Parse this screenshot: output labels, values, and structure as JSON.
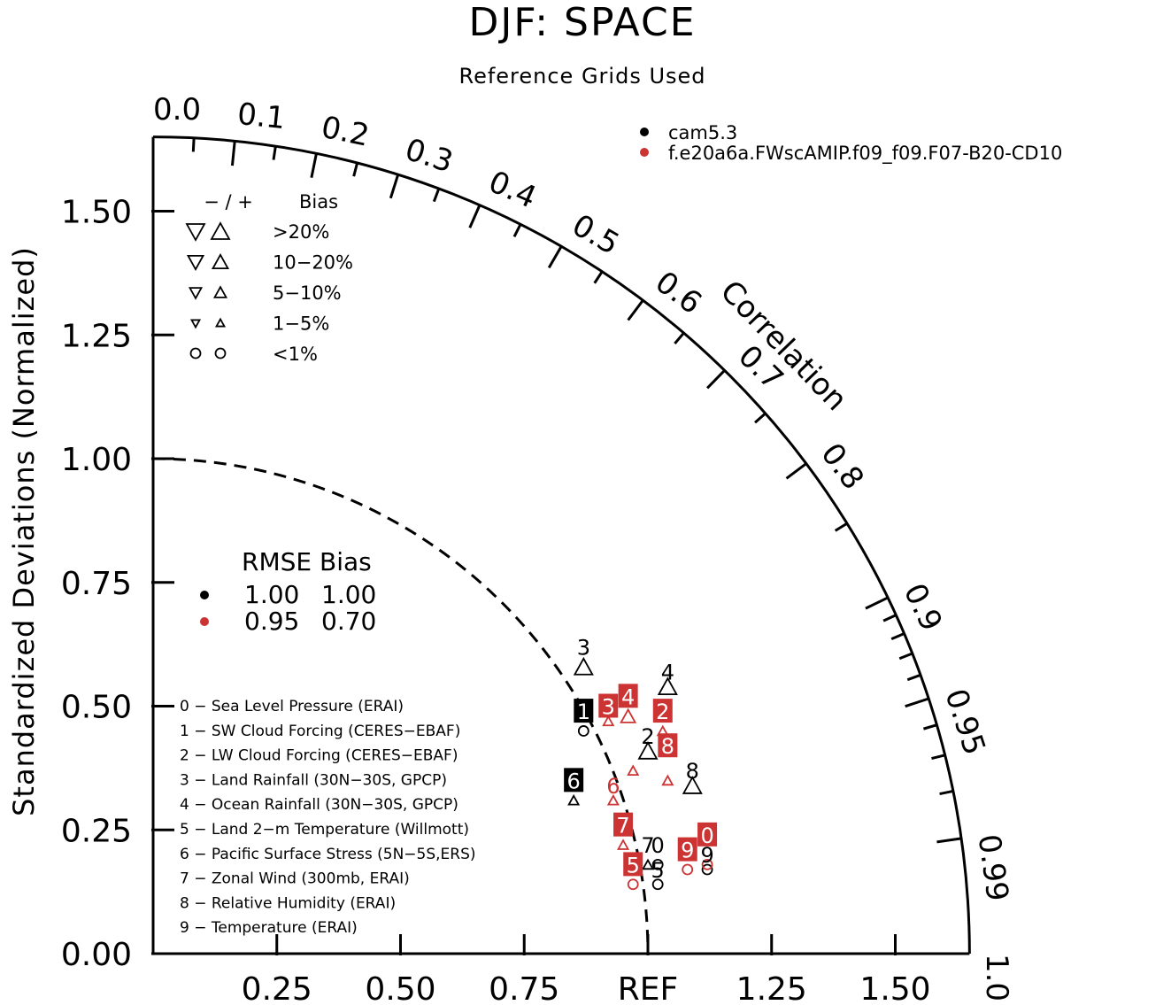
{
  "chart_data": {
    "type": "scatter",
    "subtype": "taylor-diagram",
    "title": "DJF: SPACE",
    "subtitle": "Reference Grids Used",
    "ylabel": "Standardized Deviations (Normalized)",
    "angular_label": "Correlation",
    "radial_max": 1.65,
    "y_ticks": [
      "0.00",
      "0.25",
      "0.50",
      "0.75",
      "1.00",
      "1.25",
      "1.50"
    ],
    "x_ticks": [
      "0.25",
      "0.50",
      "0.75",
      "REF",
      "1.25",
      "1.50"
    ],
    "corr_labels": [
      "0.0",
      "0.1",
      "0.2",
      "0.3",
      "0.4",
      "0.5",
      "0.6",
      "0.7",
      "0.8",
      "0.9",
      "0.95",
      "0.99",
      "1.0"
    ],
    "colors": {
      "black": "#000000",
      "red": "#cc3333"
    },
    "series": [
      {
        "name": "cam5.3",
        "color": "#000000",
        "points": [
          {
            "id": "0",
            "x": 1.02,
            "y": 0.18,
            "marker": "circle"
          },
          {
            "id": "1",
            "x": 0.87,
            "y": 0.45,
            "marker": "circle"
          },
          {
            "id": "2",
            "x": 1.0,
            "y": 0.41,
            "marker": "up-large"
          },
          {
            "id": "3",
            "x": 0.87,
            "y": 0.58,
            "marker": "up-large"
          },
          {
            "id": "4",
            "x": 1.04,
            "y": 0.54,
            "marker": "up-large"
          },
          {
            "id": "5",
            "x": 1.02,
            "y": 0.14,
            "marker": "circle"
          },
          {
            "id": "6",
            "x": 0.85,
            "y": 0.31,
            "marker": "up-small"
          },
          {
            "id": "7",
            "x": 1.0,
            "y": 0.18,
            "marker": "up-small"
          },
          {
            "id": "8",
            "x": 1.09,
            "y": 0.34,
            "marker": "up-large"
          },
          {
            "id": "9",
            "x": 1.12,
            "y": 0.17,
            "marker": "circle"
          }
        ]
      },
      {
        "name": "f.e20a6a.FWscAMIP.f09_f09.F07-B20-CD10",
        "color": "#cc3333",
        "points": [
          {
            "id": "0",
            "x": 1.12,
            "y": 0.18,
            "marker": "circle"
          },
          {
            "id": "1",
            "x": 0.97,
            "y": 0.37,
            "marker": "up-small"
          },
          {
            "id": "2",
            "x": 1.03,
            "y": 0.45,
            "marker": "up-small"
          },
          {
            "id": "3",
            "x": 0.92,
            "y": 0.47,
            "marker": "up-small"
          },
          {
            "id": "4",
            "x": 0.96,
            "y": 0.48,
            "marker": "up-med"
          },
          {
            "id": "5",
            "x": 0.97,
            "y": 0.14,
            "marker": "circle"
          },
          {
            "id": "6",
            "x": 0.93,
            "y": 0.31,
            "marker": "up-small"
          },
          {
            "id": "7",
            "x": 0.95,
            "y": 0.22,
            "marker": "up-small"
          },
          {
            "id": "8",
            "x": 1.04,
            "y": 0.35,
            "marker": "up-small"
          },
          {
            "id": "9",
            "x": 1.08,
            "y": 0.17,
            "marker": "circle"
          }
        ]
      }
    ],
    "labels_visible": [
      {
        "series": 0,
        "id": "0",
        "x": 1.02,
        "y": 0.22,
        "boxed": false
      },
      {
        "series": 0,
        "id": "1",
        "x": 0.87,
        "y": 0.49,
        "boxed": true
      },
      {
        "series": 0,
        "id": "2",
        "x": 1.0,
        "y": 0.44,
        "boxed": false
      },
      {
        "series": 0,
        "id": "3",
        "x": 0.87,
        "y": 0.62,
        "boxed": false
      },
      {
        "series": 0,
        "id": "4",
        "x": 1.04,
        "y": 0.57,
        "boxed": false
      },
      {
        "series": 0,
        "id": "5",
        "x": 1.02,
        "y": 0.17,
        "boxed": false
      },
      {
        "series": 0,
        "id": "6",
        "x": 0.85,
        "y": 0.35,
        "boxed": true
      },
      {
        "series": 0,
        "id": "7",
        "x": 1.0,
        "y": 0.22,
        "boxed": false
      },
      {
        "series": 0,
        "id": "8",
        "x": 1.09,
        "y": 0.37,
        "boxed": false
      },
      {
        "series": 0,
        "id": "9",
        "x": 1.12,
        "y": 0.2,
        "boxed": false
      },
      {
        "series": 1,
        "id": "0",
        "x": 1.12,
        "y": 0.24,
        "boxed": true
      },
      {
        "series": 1,
        "id": "2",
        "x": 1.03,
        "y": 0.49,
        "boxed": true
      },
      {
        "series": 1,
        "id": "3",
        "x": 0.92,
        "y": 0.5,
        "boxed": true
      },
      {
        "series": 1,
        "id": "4",
        "x": 0.96,
        "y": 0.52,
        "boxed": true
      },
      {
        "series": 1,
        "id": "5",
        "x": 0.97,
        "y": 0.18,
        "boxed": true
      },
      {
        "series": 1,
        "id": "6",
        "x": 0.93,
        "y": 0.34,
        "boxed": false
      },
      {
        "series": 1,
        "id": "7",
        "x": 0.95,
        "y": 0.26,
        "boxed": true
      },
      {
        "series": 1,
        "id": "8",
        "x": 1.04,
        "y": 0.42,
        "boxed": true
      },
      {
        "series": 1,
        "id": "9",
        "x": 1.08,
        "y": 0.21,
        "boxed": true
      }
    ],
    "bias_legend": {
      "header_sign": "−  /  +",
      "header_label": "Bias",
      "rows": [
        ">20%",
        "10−20%",
        "5−10%",
        "1−5%",
        "<1%"
      ]
    },
    "rmse_legend": {
      "header": "RMSE Bias",
      "rows": [
        {
          "color": "#000000",
          "rmse": "1.00",
          "bias": "1.00"
        },
        {
          "color": "#cc3333",
          "rmse": "0.95",
          "bias": "0.70"
        }
      ]
    },
    "cases": [
      "0 − Sea Level Pressure (ERAI)",
      "1 − SW Cloud Forcing (CERES−EBAF)",
      "2 − LW Cloud Forcing (CERES−EBAF)",
      "3 − Land Rainfall (30N−30S, GPCP)",
      "4 − Ocean Rainfall (30N−30S, GPCP)",
      "5 − Land 2−m Temperature (Willmott)",
      "6 − Pacific Surface Stress (5N−5S,ERS)",
      "7 − Zonal Wind (300mb, ERAI)",
      "8 − Relative Humidity (ERAI)",
      "9 − Temperature (ERAI)"
    ]
  }
}
